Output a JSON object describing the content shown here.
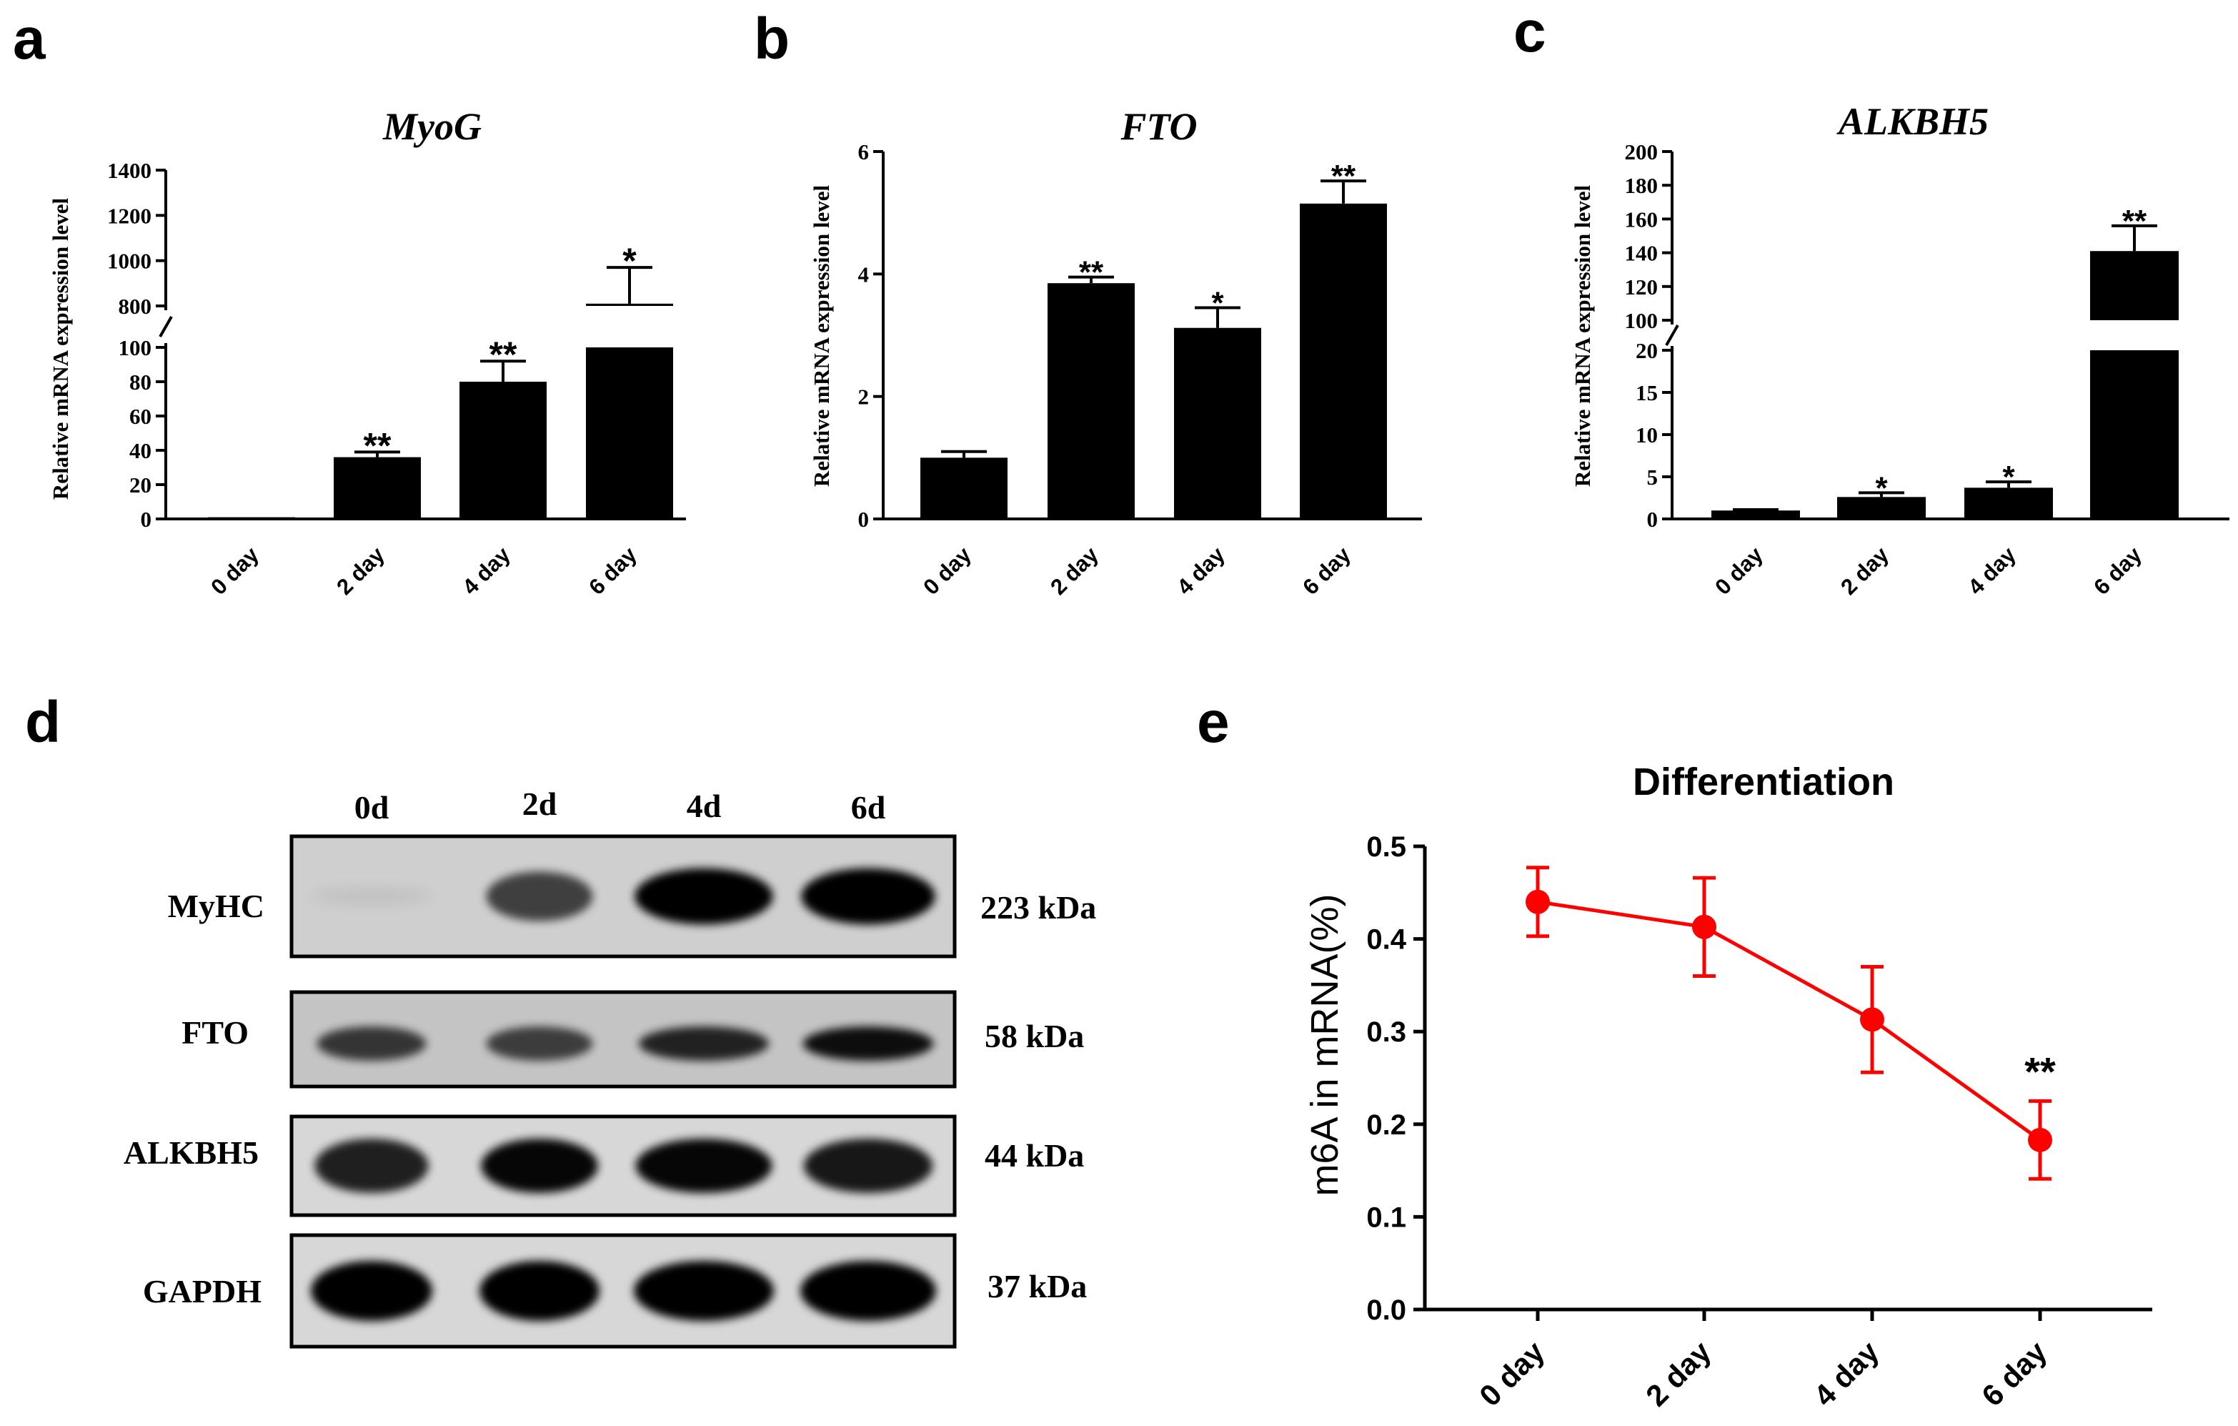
{
  "panel_letters": [
    "a",
    "b",
    "c",
    "d",
    "e"
  ],
  "ylabel_qpcr": "Relative mRNA expression level",
  "chart_data": [
    {
      "panel": "a",
      "type": "bar",
      "title": "MyoG",
      "ylabel": "Relative mRNA expression level",
      "categories": [
        "0 day",
        "2 day",
        "4 day",
        "6 day"
      ],
      "values": [
        1,
        36,
        80,
        810
      ],
      "errors": [
        0,
        3,
        12,
        160
      ],
      "significance": [
        "",
        "**",
        "**",
        "*"
      ],
      "broken_axis": true,
      "lower_ticks": [
        "0",
        "20",
        "40",
        "60",
        "80",
        "100"
      ],
      "upper_ticks": [
        "800",
        "1000",
        "1200",
        "1400"
      ]
    },
    {
      "panel": "b",
      "type": "bar",
      "title": "FTO",
      "ylabel": "Relative mRNA expression level",
      "categories": [
        "0 day",
        "2 day",
        "4 day",
        "6 day"
      ],
      "values": [
        1.0,
        3.85,
        3.12,
        5.15
      ],
      "errors": [
        0.1,
        0.1,
        0.33,
        0.37
      ],
      "significance": [
        "",
        "**",
        "*",
        "**"
      ],
      "ylim": [
        0,
        6
      ],
      "ticks": [
        "0",
        "2",
        "4",
        "6"
      ]
    },
    {
      "panel": "c",
      "type": "bar",
      "title": "ALKBH5",
      "ylabel": "Relative mRNA expression level",
      "categories": [
        "0 day",
        "2 day",
        "4 day",
        "6 day"
      ],
      "values": [
        1,
        2.6,
        3.7,
        141
      ],
      "errors": [
        0.1,
        0.5,
        0.7,
        15
      ],
      "significance": [
        "",
        "*",
        "*",
        "**"
      ],
      "broken_axis": true,
      "lower_ticks": [
        "0",
        "5",
        "10",
        "15",
        "20"
      ],
      "upper_ticks": [
        "100",
        "120",
        "140",
        "160",
        "180",
        "200"
      ]
    },
    {
      "panel": "e",
      "type": "line",
      "title": "Differentiation",
      "xlabel": "",
      "ylabel": "m6A in mRNA(%)",
      "categories": [
        "0 day",
        "2 day",
        "4 day",
        "6 day"
      ],
      "values": [
        0.44,
        0.413,
        0.313,
        0.183
      ],
      "errors": [
        0.037,
        0.053,
        0.057,
        0.042
      ],
      "significance": [
        "",
        "",
        "",
        "**"
      ],
      "ylim": [
        0,
        0.5
      ],
      "ticks": [
        "0.0",
        "0.1",
        "0.2",
        "0.3",
        "0.4",
        "0.5"
      ],
      "color": "#ff0000"
    }
  ],
  "western_blot": {
    "lanes": [
      "0d",
      "2d",
      "4d",
      "6d"
    ],
    "rows": [
      {
        "protein": "MyHC",
        "size": "223 kDa",
        "intensity": [
          0.04,
          0.55,
          0.95,
          0.95
        ]
      },
      {
        "protein": "FTO",
        "size": "58 kDa",
        "intensity": [
          0.6,
          0.55,
          0.72,
          0.85
        ]
      },
      {
        "protein": "ALKBH5",
        "size": "44 kDa",
        "intensity": [
          0.75,
          0.9,
          0.9,
          0.8
        ]
      },
      {
        "protein": "GAPDH",
        "size": "37 kDa",
        "intensity": [
          1.0,
          1.0,
          1.0,
          1.0
        ]
      }
    ]
  }
}
